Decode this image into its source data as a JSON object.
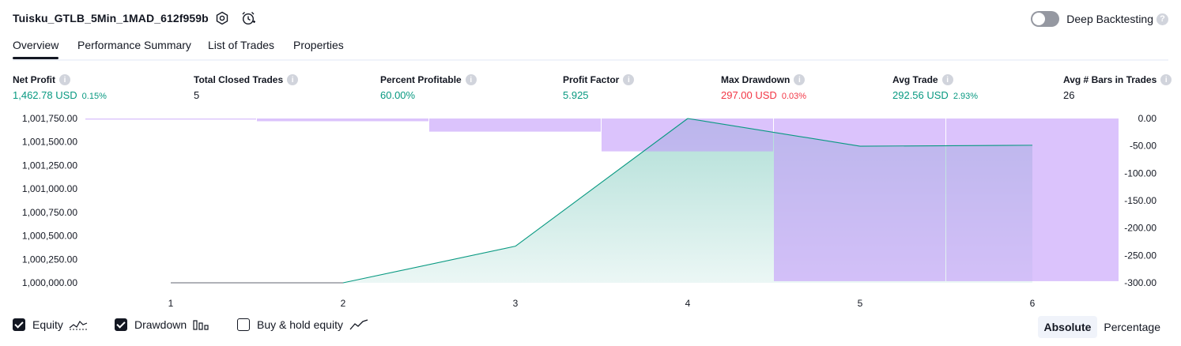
{
  "header": {
    "strategy_name": "Tuisku_GTLB_5Min_1MAD_612f959b",
    "deep_backtesting_label": "Deep Backtesting",
    "deep_backtesting_on": false
  },
  "tabs": [
    {
      "label": "Overview",
      "active": true
    },
    {
      "label": "Performance Summary",
      "active": false
    },
    {
      "label": "List of Trades",
      "active": false
    },
    {
      "label": "Properties",
      "active": false
    }
  ],
  "metrics": {
    "net_profit": {
      "label": "Net Profit",
      "value": "1,462.78 USD",
      "pct": "0.15%"
    },
    "total_closed_trades": {
      "label": "Total Closed Trades",
      "value": "5"
    },
    "percent_profitable": {
      "label": "Percent Profitable",
      "value": "60.00%"
    },
    "profit_factor": {
      "label": "Profit Factor",
      "value": "5.925"
    },
    "max_drawdown": {
      "label": "Max Drawdown",
      "value": "297.00 USD",
      "pct": "0.03%"
    },
    "avg_trade": {
      "label": "Avg Trade",
      "value": "292.56 USD",
      "pct": "2.93%"
    },
    "avg_bars": {
      "label": "Avg # Bars in Trades",
      "value": "26"
    }
  },
  "chart_data": {
    "type": "line",
    "x": [
      1,
      2,
      3,
      4,
      5,
      6
    ],
    "x_ticks": [
      "1",
      "2",
      "3",
      "4",
      "5",
      "6"
    ],
    "left_axis_ticks": [
      "1,001,750.00",
      "1,001,500.00",
      "1,001,250.00",
      "1,001,000.00",
      "1,000,750.00",
      "1,000,500.00",
      "1,000,250.00",
      "1,000,000.00"
    ],
    "right_axis_ticks": [
      "0.00",
      "-50.00",
      "-100.00",
      "-150.00",
      "-200.00",
      "-250.00",
      "-300.00"
    ],
    "ylim_left": [
      1000000,
      1001750
    ],
    "ylim_right": [
      -300,
      0
    ],
    "series": [
      {
        "name": "Equity",
        "axis": "left",
        "x": [
          1,
          2,
          3,
          4,
          5,
          6
        ],
        "values": [
          1000000,
          1000000,
          1000390,
          1001750,
          1001455,
          1001465
        ]
      },
      {
        "name": "Drawdown",
        "axis": "right",
        "type": "bar",
        "x": [
          1,
          2,
          3,
          4,
          5,
          6
        ],
        "values": [
          -2,
          -5,
          -24,
          -60,
          -297,
          -297
        ]
      }
    ],
    "colors": {
      "equity_line": "#089981",
      "equity_fill": "#089981",
      "drawdown": "#c39bfa",
      "flat_equity": "#9598a1"
    }
  },
  "legend": {
    "equity": {
      "label": "Equity",
      "checked": true
    },
    "drawdown": {
      "label": "Drawdown",
      "checked": true
    },
    "buy_hold": {
      "label": "Buy & hold equity",
      "checked": false
    }
  },
  "mode": {
    "absolute": "Absolute",
    "percentage": "Percentage",
    "selected": "absolute"
  }
}
